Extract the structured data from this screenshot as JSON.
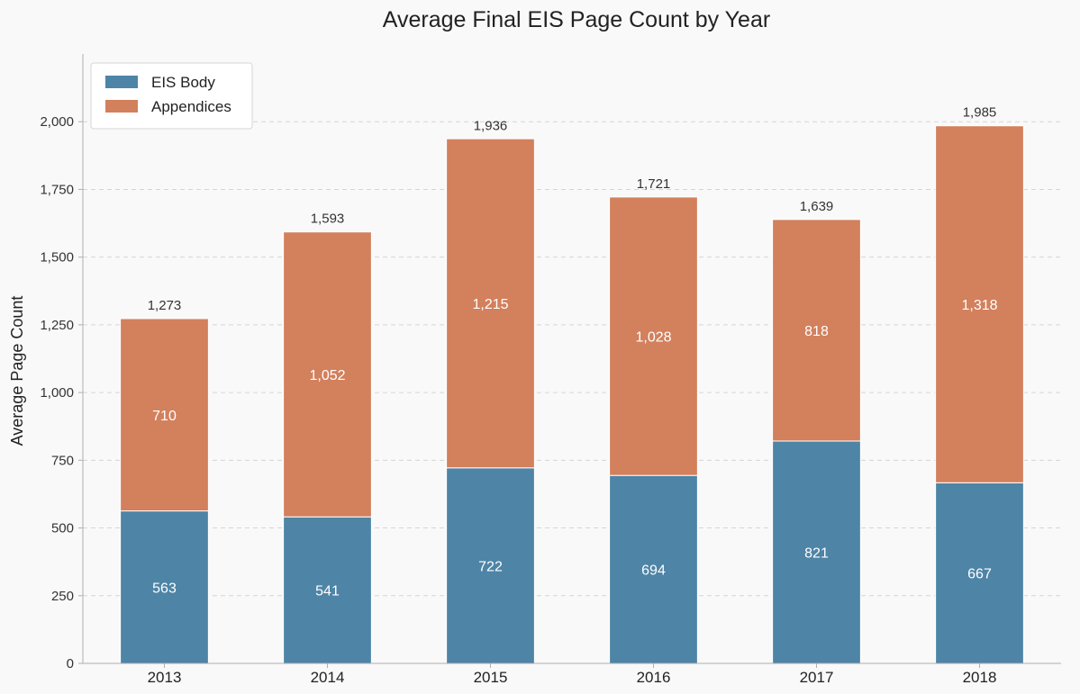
{
  "chart_data": {
    "type": "bar",
    "stacked": true,
    "title": "Average Final EIS Page Count by Year",
    "xlabel": "",
    "ylabel": "Average Page Count",
    "categories": [
      "2013",
      "2014",
      "2015",
      "2016",
      "2017",
      "2018"
    ],
    "series": [
      {
        "name": "EIS Body",
        "values": [
          563,
          541,
          722,
          694,
          821,
          667
        ],
        "labels": [
          "563",
          "541",
          "722",
          "694",
          "821",
          "667"
        ],
        "color": "#4e84a6"
      },
      {
        "name": "Appendices",
        "values": [
          710,
          1052,
          1215,
          1028,
          818,
          1318
        ],
        "labels": [
          "710",
          "1,052",
          "1,215",
          "1,028",
          "818",
          "1,318"
        ],
        "color": "#d3805c"
      }
    ],
    "totals": [
      1273,
      1593,
      1936,
      1721,
      1639,
      1985
    ],
    "total_labels": [
      "1,273",
      "1,593",
      "1,936",
      "1,721",
      "1,639",
      "1,985"
    ],
    "ylim": [
      0,
      2250
    ],
    "yticks": [
      0,
      250,
      500,
      750,
      1000,
      1250,
      1500,
      1750,
      2000
    ],
    "ytick_labels": [
      "0",
      "250",
      "500",
      "750",
      "1,000",
      "1,250",
      "1,500",
      "1,750",
      "2,000"
    ],
    "grid": true,
    "legend_position": "top-left"
  }
}
